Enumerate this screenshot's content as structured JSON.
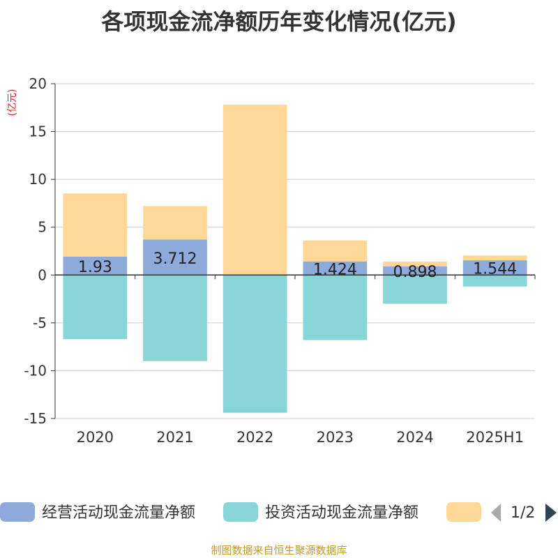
{
  "title": "各项现金流净额历年变化情况(亿元)",
  "source": "制图数据来自恒生聚源数据库",
  "chart_data": {
    "type": "bar",
    "stacked": true,
    "ylabel": "(亿元)",
    "ylim": [
      -15,
      20
    ],
    "yticks": [
      20,
      15,
      10,
      5,
      0,
      -5,
      -10,
      -15
    ],
    "grid": true,
    "categories": [
      "2020",
      "2021",
      "2022",
      "2023",
      "2024",
      "2025H1"
    ],
    "series": [
      {
        "name": "经营活动现金流量净额",
        "color": "#8eaadb",
        "values": [
          1.93,
          3.712,
          0,
          1.424,
          0.898,
          1.544
        ],
        "labels": [
          "1.93",
          "3.712",
          "",
          "1.424",
          "0.898",
          "1.544"
        ]
      },
      {
        "name": "投资活动现金流量净额",
        "color": "#88d5d8",
        "values": [
          -6.7,
          -9.0,
          -14.4,
          -6.8,
          -3.0,
          -1.2
        ]
      },
      {
        "name": "",
        "color": "#ffd898",
        "values": [
          6.6,
          3.5,
          17.8,
          2.2,
          0.5,
          0.5
        ]
      }
    ],
    "legend": {
      "position": "bottom",
      "page": "1/2"
    }
  }
}
